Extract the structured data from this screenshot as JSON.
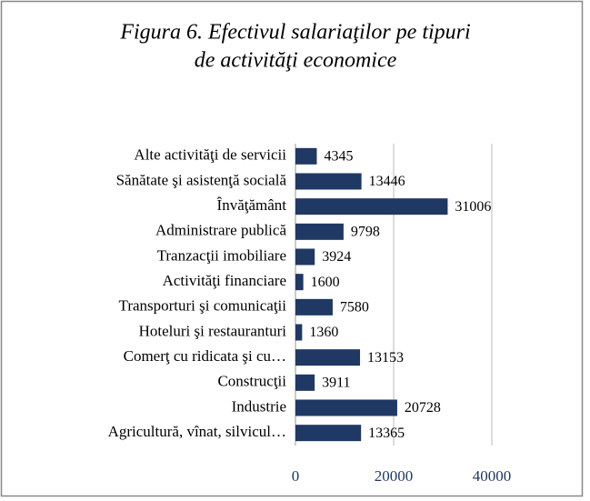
{
  "chart_data": {
    "type": "bar",
    "orientation": "horizontal",
    "title": [
      "Figura 6. Efectivul salariaţilor pe tipuri",
      "de activităţi economice"
    ],
    "categories": [
      "Alte activităţi de servicii",
      "Sănătate şi asistenţă socială",
      "Învăţământ",
      "Administrare publică",
      "Tranzacţii imobiliare",
      "Activităţi financiare",
      "Transporturi şi comunicaţii",
      "Hoteluri şi restauranturi",
      "Comerţ cu ridicata şi cu…",
      "Construcţii",
      "Industrie",
      "Agricultură, vînat, silvicul…"
    ],
    "values": [
      4345,
      13446,
      31006,
      9798,
      3924,
      1600,
      7580,
      1360,
      13153,
      3911,
      20728,
      13365
    ],
    "color": "#1f3864",
    "xlim": [
      0,
      40000
    ],
    "xticks": [
      0,
      20000,
      40000
    ],
    "grid": true
  }
}
